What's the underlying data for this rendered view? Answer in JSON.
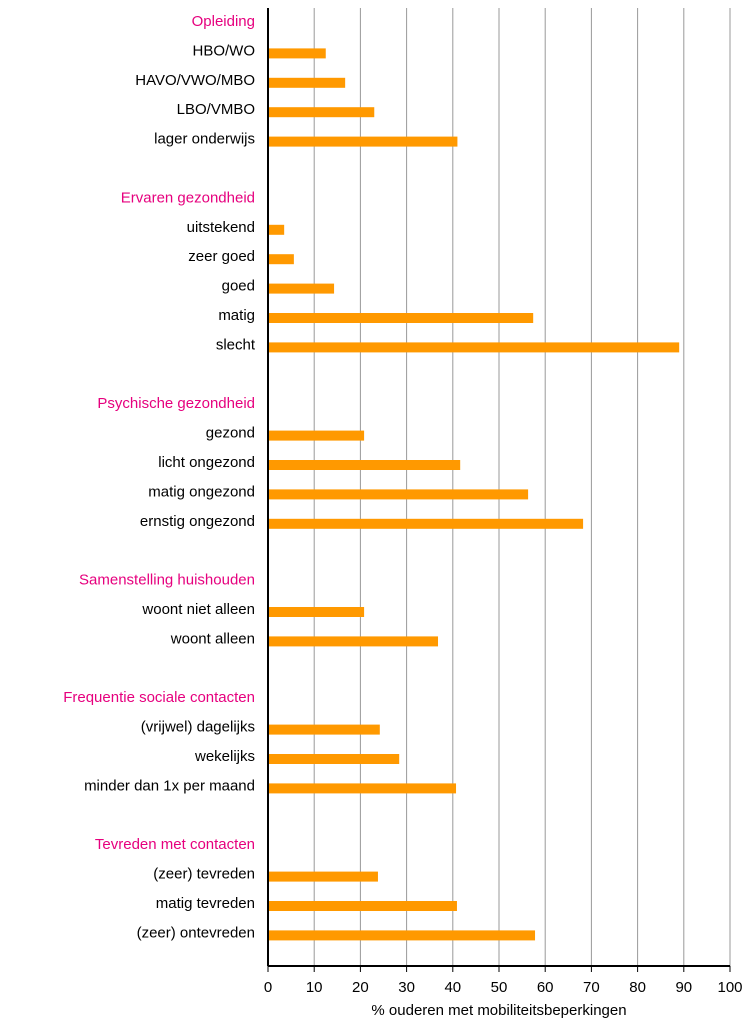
{
  "chart_data": {
    "type": "bar",
    "orientation": "horizontal",
    "color": "#ff9900",
    "heading_color": "#e6007e",
    "x_label": "% ouderen met mobiliteitsbeperkingen",
    "xlim": [
      0,
      100
    ],
    "xticks": [
      0,
      10,
      20,
      30,
      40,
      50,
      60,
      70,
      80,
      90,
      100
    ],
    "grid": true,
    "groups": [
      {
        "name": "Opleiding",
        "categories": [
          "HBO/WO",
          "HAVO/VWO/MBO",
          "LBO/VMBO",
          "lager onderwijs"
        ],
        "values": [
          12.5,
          16.7,
          23,
          41
        ]
      },
      {
        "name": "Ervaren gezondheid",
        "categories": [
          "uitstekend",
          "zeer goed",
          "goed",
          "matig",
          "slecht"
        ],
        "values": [
          3.5,
          5.6,
          14.3,
          57.4,
          89
        ]
      },
      {
        "name": "Psychische gezondheid",
        "categories": [
          "gezond",
          "licht ongezond",
          "matig ongezond",
          "ernstig ongezond"
        ],
        "values": [
          20.8,
          41.6,
          56.3,
          68.2
        ]
      },
      {
        "name": "Samenstelling huishouden",
        "categories": [
          "woont niet alleen",
          "woont alleen"
        ],
        "values": [
          20.8,
          36.8
        ]
      },
      {
        "name": "Frequentie sociale contacten",
        "categories": [
          "(vrijwel) dagelijks",
          "wekelijks",
          "minder dan 1x per maand"
        ],
        "values": [
          24.2,
          28.4,
          40.7
        ]
      },
      {
        "name": "Tevreden met contacten",
        "categories": [
          "(zeer) tevreden",
          "matig tevreden",
          "(zeer) ontevreden"
        ],
        "values": [
          23.8,
          40.9,
          57.8
        ]
      }
    ]
  }
}
